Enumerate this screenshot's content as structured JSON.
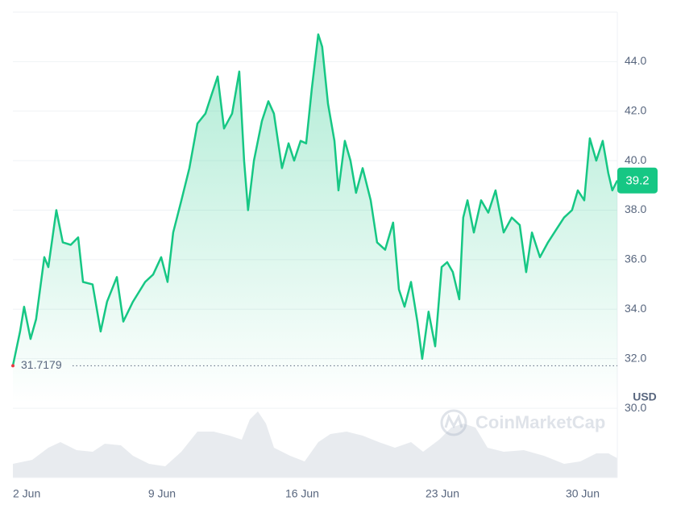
{
  "chart_data": {
    "type": "line",
    "x": [
      1.56,
      1.92,
      2.12,
      2.44,
      2.72,
      3.13,
      3.33,
      3.73,
      4.05,
      4.45,
      4.82,
      5.06,
      5.54,
      5.94,
      6.26,
      6.75,
      7.07,
      7.55,
      8.16,
      8.56,
      8.96,
      9.28,
      9.56,
      9.97,
      10.37,
      10.77,
      11.17,
      11.45,
      11.78,
      12.1,
      12.5,
      12.86,
      13.1,
      13.3,
      13.59,
      13.99,
      14.31,
      14.59,
      14.99,
      15.32,
      15.6,
      15.92,
      16.2,
      16.48,
      16.8,
      17.0,
      17.29,
      17.61,
      17.81,
      18.13,
      18.41,
      18.69,
      19.02,
      19.42,
      19.74,
      20.14,
      20.54,
      20.83,
      21.11,
      21.43,
      21.75,
      21.99,
      22.31,
      22.64,
      22.96,
      23.24,
      23.52,
      23.84,
      24.04,
      24.25,
      24.57,
      24.93,
      25.29,
      25.65,
      26.06,
      26.46,
      26.86,
      27.18,
      27.47,
      27.87,
      28.27,
      28.67,
      29.07,
      29.47,
      29.76,
      30.08,
      30.36,
      30.68,
      31.0,
      31.28,
      31.48,
      31.73
    ],
    "series": [
      {
        "color": "#16c784",
        "values": [
          31.7179,
          33.1,
          34.1,
          32.8,
          33.6,
          36.1,
          35.7,
          38.0,
          36.7,
          36.6,
          36.9,
          35.1,
          35.0,
          33.1,
          34.3,
          35.3,
          33.5,
          34.3,
          35.1,
          35.4,
          36.1,
          35.1,
          37.1,
          38.4,
          39.7,
          41.5,
          41.9,
          42.6,
          43.4,
          41.3,
          41.9,
          43.6,
          40.0,
          38.0,
          40.0,
          41.6,
          42.4,
          41.9,
          39.7,
          40.7,
          40.0,
          40.8,
          40.7,
          42.9,
          45.1,
          44.6,
          42.3,
          40.8,
          38.8,
          40.8,
          40.0,
          38.7,
          39.7,
          38.4,
          36.7,
          36.4,
          37.5,
          34.8,
          34.1,
          35.1,
          33.5,
          32.0,
          33.9,
          32.5,
          35.7,
          35.9,
          35.5,
          34.4,
          37.7,
          38.4,
          37.1,
          38.4,
          37.9,
          38.8,
          37.1,
          37.7,
          37.4,
          35.5,
          37.1,
          36.1,
          36.7,
          37.2,
          37.7,
          38.0,
          38.8,
          38.4,
          40.9,
          40.0,
          40.8,
          39.5,
          38.8,
          39.2
        ]
      }
    ],
    "xlim": [
      1.56,
      31.73
    ],
    "xticks": [
      {
        "value": 2,
        "label": "2 Jun"
      },
      {
        "value": 9,
        "label": "9 Jun"
      },
      {
        "value": 16,
        "label": "16 Jun"
      },
      {
        "value": 23,
        "label": "23 Jun"
      },
      {
        "value": 30,
        "label": "30 Jun"
      }
    ],
    "ylim": [
      27.2,
      46.0
    ],
    "yticks": [
      {
        "value": 30,
        "label": "30.0"
      },
      {
        "value": 32,
        "label": "32.0"
      },
      {
        "value": 34,
        "label": "34.0"
      },
      {
        "value": 36,
        "label": "36.0"
      },
      {
        "value": 38,
        "label": "38.0"
      },
      {
        "value": 40,
        "label": "40.0"
      },
      {
        "value": 42,
        "label": "42.0"
      },
      {
        "value": 44,
        "label": "44.0"
      }
    ],
    "y_unit": "USD",
    "reference_line": 31.7179,
    "grid": true,
    "watermark": "CoinMarketCap"
  }
}
